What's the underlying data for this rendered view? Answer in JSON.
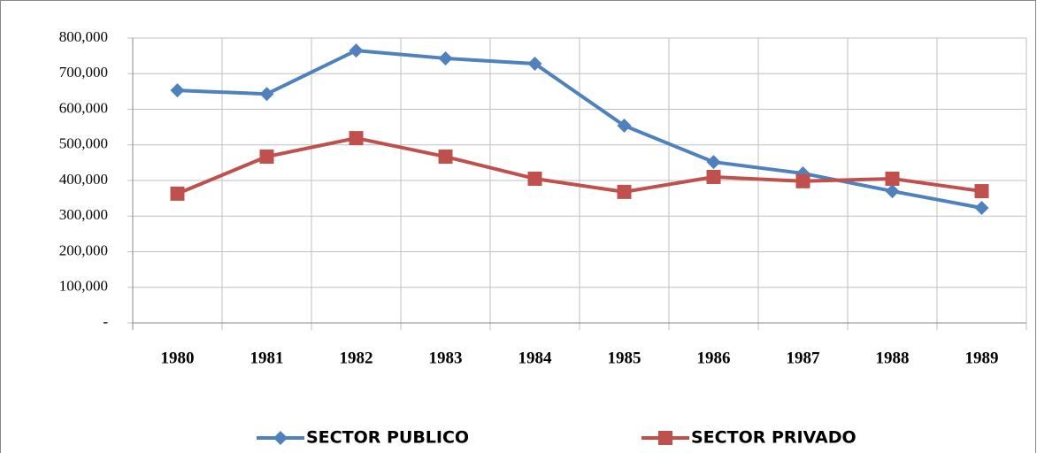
{
  "chart_data": {
    "type": "line",
    "categories": [
      "1980",
      "1981",
      "1982",
      "1983",
      "1984",
      "1985",
      "1986",
      "1987",
      "1988",
      "1989"
    ],
    "series": [
      {
        "name": "SECTOR PUBLICO",
        "color": "#4f81bd",
        "marker": "diamond",
        "values": [
          653000,
          643000,
          765000,
          743000,
          728000,
          554000,
          452000,
          420000,
          370000,
          323000
        ]
      },
      {
        "name": "SECTOR PRIVADO",
        "color": "#c0504d",
        "marker": "square",
        "values": [
          363000,
          467000,
          519000,
          467000,
          405000,
          368000,
          410000,
          398000,
          405000,
          370000
        ]
      }
    ],
    "ylim": [
      0,
      800000
    ],
    "yticks": [
      {
        "value": 0,
        "label": "-"
      },
      {
        "value": 100000,
        "label": "100,000"
      },
      {
        "value": 200000,
        "label": "200,000"
      },
      {
        "value": 300000,
        "label": "300,000"
      },
      {
        "value": 400000,
        "label": "400,000"
      },
      {
        "value": 500000,
        "label": "500,000"
      },
      {
        "value": 600000,
        "label": "600,000"
      },
      {
        "value": 700000,
        "label": "700,000"
      },
      {
        "value": 800000,
        "label": "800,000"
      }
    ],
    "grid": true,
    "legend": "bottom"
  }
}
